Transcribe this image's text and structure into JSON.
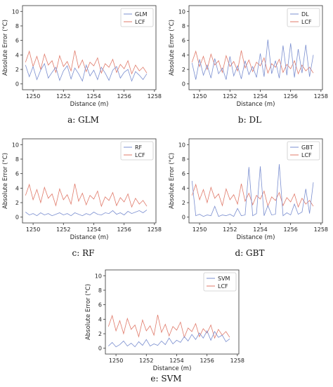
{
  "colors": {
    "model": "#7b8fd0",
    "lcf": "#e07a6a",
    "axis": "#333333",
    "legend_border": "#cccccc"
  },
  "chart_data": [
    {
      "type": "line",
      "panel_id": "a",
      "caption": "a: GLM",
      "xlabel": "Distance (m)",
      "ylabel": "Absolute Error (°C)",
      "xlim": [
        1249.3,
        1258.1
      ],
      "ylim": [
        -0.8,
        10.8
      ],
      "xticks": [
        "1250",
        "1252",
        "1254",
        "1256",
        "1258"
      ],
      "yticks": [
        "0",
        "2",
        "4",
        "6",
        "8",
        "10"
      ],
      "legend": "top-right",
      "series": [
        {
          "name": "GLM",
          "color": "#7b8fd0",
          "x": [
            1249.5,
            1249.75,
            1250,
            1250.25,
            1250.5,
            1250.75,
            1251,
            1251.25,
            1251.5,
            1251.75,
            1252,
            1252.25,
            1252.5,
            1252.75,
            1253,
            1253.25,
            1253.5,
            1253.75,
            1254,
            1254.25,
            1254.5,
            1254.75,
            1255,
            1255.25,
            1255.5,
            1255.75,
            1256,
            1256.25,
            1256.5,
            1256.75,
            1257,
            1257.25,
            1257.5
          ],
          "y": [
            2.6,
            1.0,
            2.4,
            0.6,
            1.9,
            2.8,
            0.8,
            1.6,
            2.3,
            0.5,
            1.8,
            2.5,
            0.7,
            2.2,
            1.4,
            0.4,
            2.6,
            1.1,
            1.9,
            0.6,
            2.3,
            1.5,
            0.5,
            1.9,
            2.4,
            0.8,
            1.6,
            2.0,
            0.4,
            1.7,
            1.2,
            0.6,
            1.4
          ]
        },
        {
          "name": "LCF",
          "color": "#e07a6a",
          "x": [
            1249.5,
            1249.75,
            1250,
            1250.25,
            1250.5,
            1250.75,
            1251,
            1251.25,
            1251.5,
            1251.75,
            1252,
            1252.25,
            1252.5,
            1252.75,
            1253,
            1253.25,
            1253.5,
            1253.75,
            1254,
            1254.25,
            1254.5,
            1254.75,
            1255,
            1255.25,
            1255.5,
            1255.75,
            1256,
            1256.25,
            1256.5,
            1256.75,
            1257,
            1257.25,
            1257.5
          ],
          "y": [
            3.0,
            4.5,
            2.4,
            3.8,
            2.0,
            4.1,
            2.6,
            3.2,
            1.6,
            3.9,
            2.4,
            3.1,
            1.8,
            4.6,
            2.2,
            3.3,
            1.7,
            3.0,
            2.5,
            3.6,
            1.5,
            2.8,
            2.3,
            3.4,
            1.6,
            2.7,
            2.1,
            3.2,
            1.4,
            2.6,
            1.8,
            2.3,
            1.5
          ]
        }
      ]
    },
    {
      "type": "line",
      "panel_id": "b",
      "caption": "b: DL",
      "xlabel": "Distance (m)",
      "ylabel": "Absolute Error (°C)",
      "xlim": [
        1249.3,
        1258.1
      ],
      "ylim": [
        -0.8,
        10.8
      ],
      "xticks": [
        "1250",
        "1252",
        "1254",
        "1256",
        "1258"
      ],
      "yticks": [
        "0",
        "2",
        "4",
        "6",
        "8",
        "10"
      ],
      "legend": "top-right",
      "series": [
        {
          "name": "DL",
          "color": "#7b8fd0",
          "x": [
            1249.5,
            1249.75,
            1250,
            1250.25,
            1250.5,
            1250.75,
            1251,
            1251.25,
            1251.5,
            1251.75,
            1252,
            1252.25,
            1252.5,
            1252.75,
            1253,
            1253.25,
            1253.5,
            1253.75,
            1254,
            1254.25,
            1254.5,
            1254.75,
            1255,
            1255.25,
            1255.5,
            1255.75,
            1256,
            1256.25,
            1256.5,
            1256.75,
            1257,
            1257.25,
            1257.5
          ],
          "y": [
            2.9,
            0.6,
            3.4,
            1.2,
            2.6,
            0.8,
            3.5,
            1.4,
            2.2,
            0.6,
            3.8,
            1.1,
            2.5,
            0.7,
            3.2,
            1.3,
            2.4,
            0.9,
            4.2,
            1.0,
            6.1,
            1.4,
            3.2,
            0.8,
            5.3,
            1.2,
            5.6,
            0.9,
            4.8,
            1.5,
            5.4,
            1.0,
            4.0
          ]
        },
        {
          "name": "LCF",
          "color": "#e07a6a",
          "x": [
            1249.5,
            1249.75,
            1250,
            1250.25,
            1250.5,
            1250.75,
            1251,
            1251.25,
            1251.5,
            1251.75,
            1252,
            1252.25,
            1252.5,
            1252.75,
            1253,
            1253.25,
            1253.5,
            1253.75,
            1254,
            1254.25,
            1254.5,
            1254.75,
            1255,
            1255.25,
            1255.5,
            1255.75,
            1256,
            1256.25,
            1256.5,
            1256.75,
            1257,
            1257.25,
            1257.5
          ],
          "y": [
            3.0,
            4.5,
            2.4,
            3.8,
            2.0,
            4.1,
            2.6,
            3.2,
            1.6,
            3.9,
            2.4,
            3.1,
            1.8,
            4.6,
            2.2,
            3.3,
            1.7,
            3.0,
            2.5,
            3.6,
            1.5,
            2.8,
            2.3,
            3.4,
            1.6,
            2.7,
            2.1,
            3.2,
            1.4,
            2.6,
            1.8,
            2.3,
            1.5
          ]
        }
      ]
    },
    {
      "type": "line",
      "panel_id": "c",
      "caption": "c: RF",
      "xlabel": "Distance (m)",
      "ylabel": "Absolute Error (°C)",
      "xlim": [
        1249.3,
        1258.1
      ],
      "ylim": [
        -0.8,
        10.8
      ],
      "xticks": [
        "1250",
        "1252",
        "1254",
        "1256",
        "1258"
      ],
      "yticks": [
        "0",
        "2",
        "4",
        "6",
        "8",
        "10"
      ],
      "legend": "top-right",
      "series": [
        {
          "name": "RF",
          "color": "#7b8fd0",
          "x": [
            1249.5,
            1249.75,
            1250,
            1250.25,
            1250.5,
            1250.75,
            1251,
            1251.25,
            1251.5,
            1251.75,
            1252,
            1252.25,
            1252.5,
            1252.75,
            1253,
            1253.25,
            1253.5,
            1253.75,
            1254,
            1254.25,
            1254.5,
            1254.75,
            1255,
            1255.25,
            1255.5,
            1255.75,
            1256,
            1256.25,
            1256.5,
            1256.75,
            1257,
            1257.25,
            1257.5
          ],
          "y": [
            0.7,
            0.3,
            0.5,
            0.2,
            0.6,
            0.3,
            0.5,
            0.2,
            0.4,
            0.6,
            0.3,
            0.5,
            0.2,
            0.6,
            0.4,
            0.2,
            0.5,
            0.3,
            0.7,
            0.4,
            0.3,
            0.6,
            0.5,
            0.9,
            0.4,
            0.6,
            0.3,
            0.8,
            0.5,
            0.7,
            0.9,
            0.6,
            1.0
          ]
        },
        {
          "name": "LCF",
          "color": "#e07a6a",
          "x": [
            1249.5,
            1249.75,
            1250,
            1250.25,
            1250.5,
            1250.75,
            1251,
            1251.25,
            1251.5,
            1251.75,
            1252,
            1252.25,
            1252.5,
            1252.75,
            1253,
            1253.25,
            1253.5,
            1253.75,
            1254,
            1254.25,
            1254.5,
            1254.75,
            1255,
            1255.25,
            1255.5,
            1255.75,
            1256,
            1256.25,
            1256.5,
            1256.75,
            1257,
            1257.25,
            1257.5
          ],
          "y": [
            3.0,
            4.5,
            2.4,
            3.8,
            2.0,
            4.1,
            2.6,
            3.2,
            1.6,
            3.9,
            2.4,
            3.1,
            1.8,
            4.6,
            2.2,
            3.3,
            1.7,
            3.0,
            2.5,
            3.6,
            1.5,
            2.8,
            2.3,
            3.4,
            1.6,
            2.7,
            2.1,
            3.2,
            1.4,
            2.6,
            1.8,
            2.3,
            1.5
          ]
        }
      ]
    },
    {
      "type": "line",
      "panel_id": "d",
      "caption": "d: GBT",
      "xlabel": "Distance (m)",
      "ylabel": "Absolute Error (°C)",
      "xlim": [
        1249.3,
        1258.1
      ],
      "ylim": [
        -0.8,
        10.8
      ],
      "xticks": [
        "1250",
        "1252",
        "1254",
        "1256",
        "1258"
      ],
      "yticks": [
        "0",
        "2",
        "4",
        "6",
        "8",
        "10"
      ],
      "legend": "top-right",
      "series": [
        {
          "name": "GBT",
          "color": "#7b8fd0",
          "x": [
            1249.5,
            1249.75,
            1250,
            1250.25,
            1250.5,
            1250.75,
            1251,
            1251.25,
            1251.5,
            1251.75,
            1252,
            1252.25,
            1252.5,
            1252.75,
            1253,
            1253.25,
            1253.5,
            1253.75,
            1254,
            1254.25,
            1254.5,
            1254.75,
            1255,
            1255.25,
            1255.5,
            1255.75,
            1256,
            1256.25,
            1256.5,
            1256.75,
            1257,
            1257.25,
            1257.5
          ],
          "y": [
            5.0,
            0.2,
            0.4,
            0.1,
            0.3,
            0.2,
            1.5,
            0.1,
            0.3,
            0.2,
            0.4,
            0.1,
            1.2,
            0.2,
            0.3,
            6.9,
            0.2,
            0.5,
            7.0,
            0.2,
            1.6,
            0.3,
            0.4,
            7.3,
            0.2,
            0.6,
            0.3,
            1.8,
            0.4,
            0.7,
            3.9,
            0.5,
            4.8
          ]
        },
        {
          "name": "LCF",
          "color": "#e07a6a",
          "x": [
            1249.5,
            1249.75,
            1250,
            1250.25,
            1250.5,
            1250.75,
            1251,
            1251.25,
            1251.5,
            1251.75,
            1252,
            1252.25,
            1252.5,
            1252.75,
            1253,
            1253.25,
            1253.5,
            1253.75,
            1254,
            1254.25,
            1254.5,
            1254.75,
            1255,
            1255.25,
            1255.5,
            1255.75,
            1256,
            1256.25,
            1256.5,
            1256.75,
            1257,
            1257.25,
            1257.5
          ],
          "y": [
            3.0,
            4.5,
            2.4,
            3.8,
            2.0,
            4.1,
            2.6,
            3.2,
            1.6,
            3.9,
            2.4,
            3.1,
            1.8,
            4.6,
            2.2,
            3.3,
            1.7,
            3.0,
            2.5,
            3.6,
            1.5,
            2.8,
            2.3,
            3.4,
            1.6,
            2.7,
            2.1,
            3.2,
            1.4,
            2.6,
            1.8,
            2.3,
            1.5
          ]
        }
      ]
    },
    {
      "type": "line",
      "panel_id": "e",
      "caption": "e: SVM",
      "xlabel": "Distance (m)",
      "ylabel": "Absolute Error (°C)",
      "xlim": [
        1249.3,
        1258.1
      ],
      "ylim": [
        -0.8,
        10.8
      ],
      "xticks": [
        "1250",
        "1252",
        "1254",
        "1256",
        "1258"
      ],
      "yticks": [
        "0",
        "2",
        "4",
        "6",
        "8",
        "10"
      ],
      "legend": "top-right",
      "series": [
        {
          "name": "SVM",
          "color": "#7b8fd0",
          "x": [
            1249.5,
            1249.75,
            1250,
            1250.25,
            1250.5,
            1250.75,
            1251,
            1251.25,
            1251.5,
            1251.75,
            1252,
            1252.25,
            1252.5,
            1252.75,
            1253,
            1253.25,
            1253.5,
            1253.75,
            1254,
            1254.25,
            1254.5,
            1254.75,
            1255,
            1255.25,
            1255.5,
            1255.75,
            1256,
            1256.25,
            1256.5,
            1256.75,
            1257,
            1257.25,
            1257.5
          ],
          "y": [
            0.3,
            0.8,
            0.2,
            0.5,
            1.0,
            0.3,
            0.7,
            0.2,
            0.9,
            0.4,
            1.2,
            0.3,
            0.6,
            0.4,
            1.0,
            0.5,
            1.4,
            0.6,
            1.1,
            0.8,
            1.6,
            1.0,
            1.9,
            1.2,
            2.1,
            1.4,
            2.4,
            1.1,
            2.3,
            1.5,
            1.8,
            0.9,
            1.3
          ]
        },
        {
          "name": "LCF",
          "color": "#e07a6a",
          "x": [
            1249.5,
            1249.75,
            1250,
            1250.25,
            1250.5,
            1250.75,
            1251,
            1251.25,
            1251.5,
            1251.75,
            1252,
            1252.25,
            1252.5,
            1252.75,
            1253,
            1253.25,
            1253.5,
            1253.75,
            1254,
            1254.25,
            1254.5,
            1254.75,
            1255,
            1255.25,
            1255.5,
            1255.75,
            1256,
            1256.25,
            1256.5,
            1256.75,
            1257,
            1257.25,
            1257.5
          ],
          "y": [
            3.0,
            4.5,
            2.4,
            3.8,
            2.0,
            4.1,
            2.6,
            3.2,
            1.6,
            3.9,
            2.4,
            3.1,
            1.8,
            4.6,
            2.2,
            3.3,
            1.7,
            3.0,
            2.5,
            3.6,
            1.5,
            2.8,
            2.3,
            3.4,
            1.6,
            2.7,
            2.1,
            3.2,
            1.4,
            2.6,
            1.8,
            2.3,
            1.5
          ]
        }
      ]
    }
  ]
}
